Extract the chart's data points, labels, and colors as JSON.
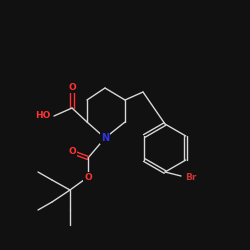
{
  "bg_color": "#111111",
  "bond_color": "#d8d8d8",
  "atom_colors": {
    "O": "#ff3333",
    "N": "#3333ee",
    "Br": "#cc3333",
    "C": "#d8d8d8"
  },
  "figsize": [
    2.5,
    2.5
  ],
  "dpi": 100
}
